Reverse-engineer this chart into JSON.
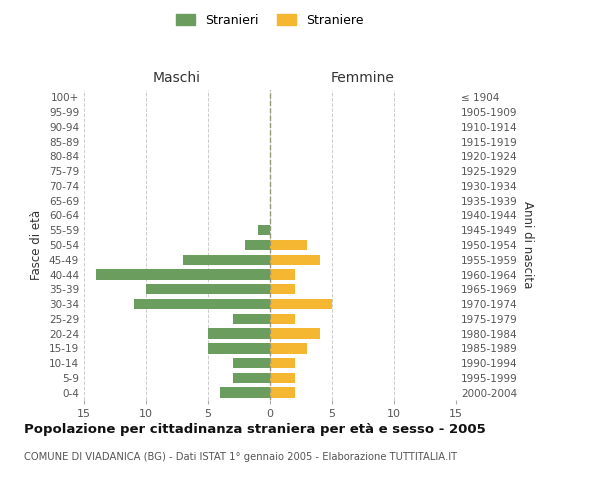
{
  "age_groups": [
    "100+",
    "95-99",
    "90-94",
    "85-89",
    "80-84",
    "75-79",
    "70-74",
    "65-69",
    "60-64",
    "55-59",
    "50-54",
    "45-49",
    "40-44",
    "35-39",
    "30-34",
    "25-29",
    "20-24",
    "15-19",
    "10-14",
    "5-9",
    "0-4"
  ],
  "birth_years": [
    "≤ 1904",
    "1905-1909",
    "1910-1914",
    "1915-1919",
    "1920-1924",
    "1925-1929",
    "1930-1934",
    "1935-1939",
    "1940-1944",
    "1945-1949",
    "1950-1954",
    "1955-1959",
    "1960-1964",
    "1965-1969",
    "1970-1974",
    "1975-1979",
    "1980-1984",
    "1985-1989",
    "1990-1994",
    "1995-1999",
    "2000-2004"
  ],
  "stranieri": [
    0,
    0,
    0,
    0,
    0,
    0,
    0,
    0,
    0,
    1,
    2,
    7,
    14,
    10,
    11,
    3,
    5,
    5,
    3,
    3,
    4
  ],
  "straniere": [
    0,
    0,
    0,
    0,
    0,
    0,
    0,
    0,
    0,
    0,
    3,
    4,
    2,
    2,
    5,
    2,
    4,
    3,
    2,
    2,
    2
  ],
  "stranieri_color": "#6b9e5e",
  "straniere_color": "#f5b731",
  "title": "Popolazione per cittadinanza straniera per età e sesso - 2005",
  "subtitle": "COMUNE DI VIADANICA (BG) - Dati ISTAT 1° gennaio 2005 - Elaborazione TUTTITALIA.IT",
  "left_header": "Maschi",
  "right_header": "Femmine",
  "left_yaxis_label": "Fasce di età",
  "right_yaxis_label": "Anni di nascita",
  "xlim": 15,
  "background_color": "#ffffff",
  "grid_color": "#cccccc"
}
